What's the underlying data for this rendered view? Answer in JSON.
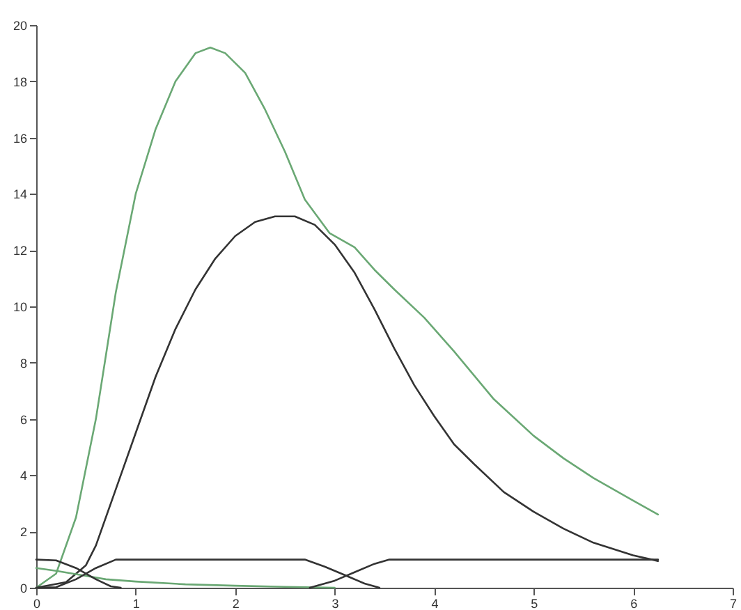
{
  "chart_data": {
    "type": "line",
    "xlim": [
      0,
      7
    ],
    "xticks": [
      0,
      1,
      2,
      3,
      4,
      5,
      6,
      7
    ],
    "ylim": [
      0,
      20
    ],
    "yticks": [
      0,
      2,
      4,
      6,
      8,
      10,
      12,
      14,
      16,
      18,
      20
    ],
    "grid": false,
    "legend": false,
    "line_style": "solid",
    "marker": "none",
    "series": [
      {
        "color": "#6aa874",
        "x": [
          0,
          0.2,
          0.4,
          0.6,
          0.8,
          1.0,
          1.2,
          1.4,
          1.6,
          1.75,
          1.9,
          2.1,
          2.3,
          2.5,
          2.7,
          2.95,
          3.2,
          3.4,
          3.6,
          3.9,
          4.2,
          4.6,
          5.0,
          5.3,
          5.6,
          6.0,
          6.25
        ],
        "values": [
          0,
          0.5,
          2.5,
          6,
          10.5,
          14,
          16.3,
          18,
          19,
          19.2,
          19,
          18.3,
          17,
          15.5,
          13.8,
          12.6,
          12.1,
          11.3,
          10.6,
          9.6,
          8.4,
          6.7,
          5.4,
          4.6,
          3.9,
          3.1,
          2.6
        ]
      },
      {
        "color": "#333333",
        "x": [
          0,
          0.3,
          0.5,
          0.6,
          0.8,
          1.0,
          1.2,
          1.4,
          1.6,
          1.8,
          2.0,
          2.2,
          2.4,
          2.6,
          2.8,
          3.0,
          3.2,
          3.4,
          3.6,
          3.8,
          4.0,
          4.2,
          4.4,
          4.7,
          5.0,
          5.3,
          5.6,
          6.0,
          6.25
        ],
        "values": [
          0,
          0.2,
          0.8,
          1.5,
          3.5,
          5.5,
          7.5,
          9.2,
          10.6,
          11.7,
          12.5,
          13,
          13.2,
          13.2,
          12.9,
          12.2,
          11.2,
          9.9,
          8.5,
          7.2,
          6.1,
          5.1,
          4.4,
          3.4,
          2.7,
          2.1,
          1.6,
          1.15,
          0.95
        ]
      },
      {
        "color": "#6aa874",
        "x": [
          0,
          0.2,
          0.45,
          0.7,
          1.0,
          1.5,
          2.0,
          2.5,
          3.0
        ],
        "values": [
          0.7,
          0.6,
          0.45,
          0.3,
          0.22,
          0.12,
          0.07,
          0.03,
          0
        ]
      },
      {
        "color": "#333333",
        "x": [
          0,
          0.2,
          0.4,
          0.6,
          0.75,
          0.85
        ],
        "values": [
          1,
          0.97,
          0.7,
          0.3,
          0.05,
          0
        ]
      },
      {
        "color": "#333333",
        "x": [
          0,
          0.2,
          0.4,
          0.6,
          0.8,
          2.7,
          2.9,
          3.1,
          3.3,
          3.45
        ],
        "values": [
          0,
          0.02,
          0.3,
          0.7,
          1,
          1,
          0.75,
          0.45,
          0.15,
          0
        ]
      },
      {
        "color": "#333333",
        "x": [
          2.75,
          3.0,
          3.2,
          3.4,
          3.55,
          6.25
        ],
        "values": [
          0,
          0.25,
          0.55,
          0.85,
          1,
          1
        ]
      }
    ]
  }
}
